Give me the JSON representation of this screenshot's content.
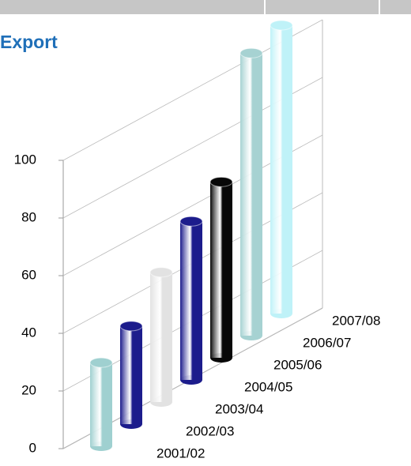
{
  "chart_data": {
    "type": "bar",
    "title": "Export",
    "categories": [
      "2001/02",
      "2002/03",
      "2003/04",
      "2004/05",
      "2005/06",
      "2006/07",
      "2007/08"
    ],
    "values": [
      29,
      34,
      45,
      55,
      61,
      98,
      100
    ],
    "colors": [
      "#9fd0d0",
      "#1c1c8c",
      "#e2e2e2",
      "#1c1c8c",
      "#080808",
      "#a6d2d2",
      "#bff2f8"
    ],
    "ylim": [
      0,
      100
    ],
    "yticks": [
      0,
      20,
      40,
      60,
      80,
      100
    ],
    "grid": true
  }
}
